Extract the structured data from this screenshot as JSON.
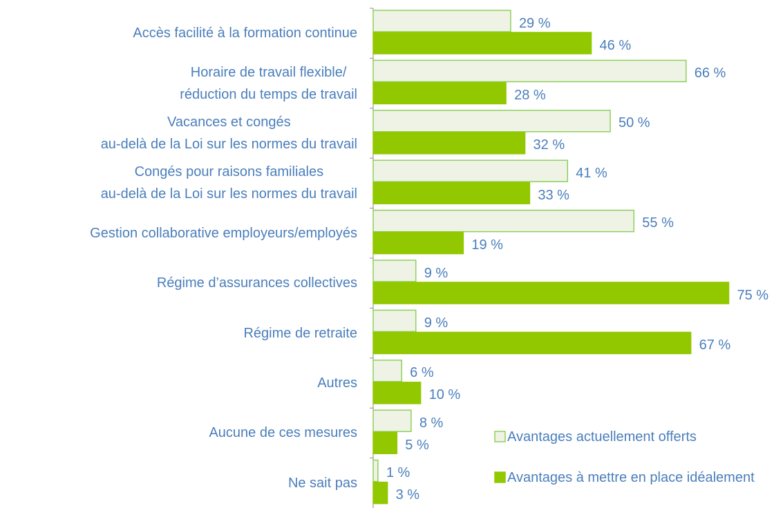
{
  "chart_data": {
    "type": "bar",
    "orientation": "horizontal",
    "categories": [
      "Accès facilité à la formation continue",
      "Horaire de travail flexible/\nréduction du temps de travail",
      "Vacances et congés\nau-delà de la Loi sur les normes du travail",
      "Congés pour raisons familiales\nau-delà de la Loi sur les normes du travail",
      "Gestion collaborative employeurs/employés",
      "Régime d’assurances collectives",
      "Régime de retraite",
      "Autres",
      "Aucune de ces mesures",
      "Ne sait pas"
    ],
    "series": [
      {
        "name": "Avantages actuellement offerts",
        "color": "#eef3e6",
        "stroke": "#8fcf5a",
        "values": [
          29,
          66,
          50,
          41,
          55,
          9,
          9,
          6,
          8,
          1
        ],
        "value_labels": [
          "29 %",
          "66 %",
          "50 %",
          "41 %",
          "55 %",
          "9 %",
          "9 %",
          "6 %",
          "8 %",
          "1 %"
        ]
      },
      {
        "name": "Avantages à mettre en place idéalement",
        "color": "#92c800",
        "stroke": "#92c800",
        "values": [
          46,
          28,
          32,
          33,
          19,
          75,
          67,
          10,
          5,
          3
        ],
        "value_labels": [
          "46 %",
          "28 %",
          "32 %",
          "33 %",
          "19 %",
          "75 %",
          "67 %",
          "10 %",
          "5 %",
          "3 %"
        ]
      }
    ],
    "legend": "bottom-right"
  }
}
